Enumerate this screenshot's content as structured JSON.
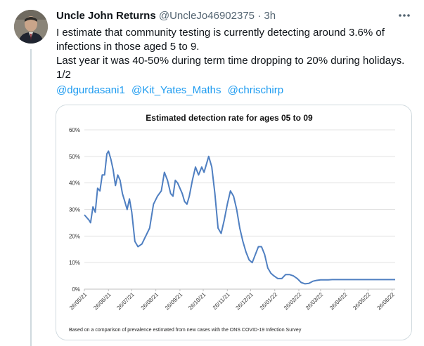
{
  "tweet": {
    "author_name": "Uncle John Returns",
    "author_handle": "@UncleJo46902375",
    "separator": "·",
    "timestamp": "3h",
    "lines": [
      "I estimate that community testing is currently detecting around 3.6% of infections in those aged 5 to 9.",
      "Last year it was 40-50% during term time dropping to 20% during holidays.",
      "1/2"
    ],
    "mentions": [
      "@dgurdasani1",
      "@Kit_Yates_Maths",
      "@chrischirp"
    ]
  },
  "colors": {
    "link": "#1d9bf0",
    "line": "#4f7fc1",
    "muted": "#536471"
  },
  "icons": {
    "more": "more-horizontal-icon"
  },
  "chart_data": {
    "type": "line",
    "title": "Estimated detection rate for ages 05 to 09",
    "footnote": "Based on a comparison of prevalence estimated from new cases with the ONS COVID-19 Infection Survey",
    "y_ticks": [
      "0%",
      "10%",
      "20%",
      "30%",
      "40%",
      "50%",
      "60%"
    ],
    "ylim": [
      0,
      60
    ],
    "x_tick_labels": [
      "26/05/21",
      "26/06/21",
      "26/07/21",
      "26/08/21",
      "26/09/21",
      "26/10/21",
      "26/11/21",
      "26/12/21",
      "26/01/22",
      "26/02/22",
      "26/03/22",
      "26/04/22",
      "26/05/22",
      "26/06/22"
    ],
    "grid": true,
    "legend": "none",
    "series": [
      {
        "x": [
          "2021-05-26",
          "2021-06-01",
          "2021-06-03",
          "2021-06-06",
          "2021-06-09",
          "2021-06-12",
          "2021-06-15",
          "2021-06-18",
          "2021-06-21",
          "2021-06-24",
          "2021-06-26",
          "2021-06-29",
          "2021-07-02",
          "2021-07-05",
          "2021-07-08",
          "2021-07-11",
          "2021-07-14",
          "2021-07-17",
          "2021-07-20",
          "2021-07-23",
          "2021-07-26",
          "2021-07-30",
          "2021-08-03",
          "2021-08-08",
          "2021-08-13",
          "2021-08-18",
          "2021-08-23",
          "2021-08-28",
          "2021-09-02",
          "2021-09-06",
          "2021-09-10",
          "2021-09-14",
          "2021-09-17",
          "2021-09-20",
          "2021-09-23",
          "2021-09-26",
          "2021-09-29",
          "2021-10-02",
          "2021-10-05",
          "2021-10-08",
          "2021-10-12",
          "2021-10-16",
          "2021-10-20",
          "2021-10-24",
          "2021-10-27",
          "2021-10-30",
          "2021-11-02",
          "2021-11-06",
          "2021-11-10",
          "2021-11-14",
          "2021-11-18",
          "2021-11-22",
          "2021-11-26",
          "2021-11-30",
          "2021-12-04",
          "2021-12-08",
          "2021-12-12",
          "2021-12-16",
          "2021-12-20",
          "2021-12-24",
          "2021-12-28",
          "2022-01-01",
          "2022-01-05",
          "2022-01-09",
          "2022-01-13",
          "2022-01-17",
          "2022-01-21",
          "2022-01-25",
          "2022-01-30",
          "2022-02-04",
          "2022-02-09",
          "2022-02-14",
          "2022-02-19",
          "2022-02-24",
          "2022-03-01",
          "2022-03-06",
          "2022-03-11",
          "2022-03-16",
          "2022-03-21",
          "2022-03-26",
          "2022-03-31",
          "2022-04-05",
          "2022-04-10",
          "2022-04-15",
          "2022-04-20",
          "2022-04-25",
          "2022-04-30",
          "2022-05-05",
          "2022-05-10",
          "2022-05-15",
          "2022-05-20",
          "2022-05-25",
          "2022-05-30",
          "2022-06-04",
          "2022-06-09",
          "2022-06-14",
          "2022-06-19",
          "2022-06-24",
          "2022-06-30"
        ],
        "y": [
          28,
          26,
          25,
          31,
          29,
          38,
          37,
          43,
          43,
          51,
          52,
          49,
          45,
          39,
          43,
          41,
          36,
          33,
          30,
          34,
          29,
          18,
          16,
          17,
          20,
          23,
          32,
          35,
          37,
          44,
          41,
          36,
          35,
          41,
          40,
          38,
          36,
          33,
          32,
          35,
          41,
          46,
          43,
          46,
          44,
          47,
          50,
          46,
          36,
          23,
          21,
          26,
          32,
          37,
          35,
          30,
          23,
          18,
          14,
          11,
          10,
          13,
          16,
          16,
          13,
          8,
          6,
          5,
          4,
          4,
          5.5,
          5.5,
          5,
          4,
          2.5,
          2,
          2.2,
          3,
          3.3,
          3.5,
          3.5,
          3.5,
          3.6,
          3.6,
          3.6,
          3.6,
          3.6,
          3.6,
          3.6,
          3.6,
          3.6,
          3.6,
          3.6,
          3.6,
          3.6,
          3.6,
          3.6,
          3.6,
          3.6
        ]
      }
    ]
  }
}
